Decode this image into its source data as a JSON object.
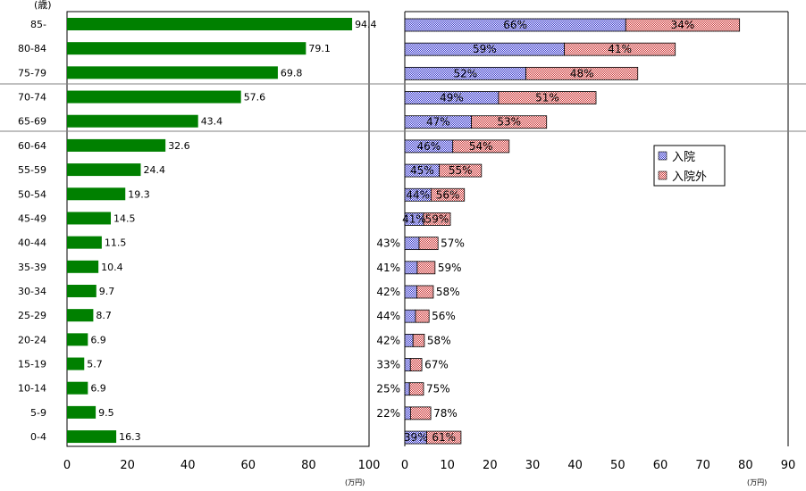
{
  "chart_data": [
    {
      "type": "bar",
      "orientation": "horizontal",
      "y_unit_label": "(歳)",
      "x_unit_label": "(万円)",
      "xlim": [
        0,
        100
      ],
      "xticks": [
        0,
        20,
        40,
        60,
        80,
        100
      ],
      "color": "#008000",
      "categories": [
        "85-",
        "80-84",
        "75-79",
        "70-74",
        "65-69",
        "60-64",
        "55-59",
        "50-54",
        "45-49",
        "40-44",
        "35-39",
        "30-34",
        "25-29",
        "20-24",
        "15-19",
        "10-14",
        "5-9",
        "0-4"
      ],
      "values": [
        94.4,
        79.1,
        69.8,
        57.6,
        43.4,
        32.6,
        24.4,
        19.3,
        14.5,
        11.5,
        10.4,
        9.7,
        8.7,
        6.9,
        5.7,
        6.9,
        9.5,
        16.3
      ],
      "value_labels": [
        "94.4",
        "79.1",
        "69.8",
        "57.6",
        "43.4",
        "32.6",
        "24.4",
        "19.3",
        "14.5",
        "11.5",
        "10.4",
        "9.7",
        "8.7",
        "6.9",
        "5.7",
        "6.9",
        "9.5",
        "16.3"
      ]
    },
    {
      "type": "bar",
      "orientation": "horizontal",
      "stacked": true,
      "x_unit_label": "(万円)",
      "xlim": [
        0,
        90
      ],
      "xticks": [
        0,
        10,
        20,
        30,
        40,
        50,
        60,
        70,
        80,
        90
      ],
      "legend": "right-middle",
      "categories": [
        "85-",
        "80-84",
        "75-79",
        "70-74",
        "65-69",
        "60-64",
        "55-59",
        "50-54",
        "45-49",
        "40-44",
        "35-39",
        "30-34",
        "25-29",
        "20-24",
        "15-19",
        "10-14",
        "5-9",
        "0-4"
      ],
      "totals": [
        78.6,
        63.5,
        54.7,
        44.9,
        33.3,
        24.5,
        18.0,
        14.0,
        10.7,
        7.8,
        7.1,
        6.7,
        5.7,
        4.6,
        4.0,
        4.4,
        6.1,
        13.2
      ],
      "series": [
        {
          "name": "入院",
          "color": "#3333cc",
          "percent": [
            66,
            59,
            52,
            49,
            47,
            46,
            45,
            44,
            41,
            43,
            41,
            42,
            44,
            42,
            33,
            25,
            22,
            39
          ],
          "labels": [
            "66%",
            "59%",
            "52%",
            "49%",
            "47%",
            "46%",
            "45%",
            "44%",
            "41%",
            "43%",
            "41%",
            "42%",
            "44%",
            "42%",
            "33%",
            "25%",
            "22%",
            "39%"
          ]
        },
        {
          "name": "入院外",
          "color": "#cc3333",
          "percent": [
            34,
            41,
            48,
            51,
            53,
            54,
            55,
            56,
            59,
            57,
            59,
            58,
            56,
            58,
            67,
            75,
            78,
            61
          ],
          "labels": [
            "34%",
            "41%",
            "48%",
            "51%",
            "53%",
            "54%",
            "55%",
            "56%",
            "59%",
            "57%",
            "59%",
            "58%",
            "56%",
            "58%",
            "67%",
            "75%",
            "78%",
            "61%"
          ]
        }
      ],
      "labels_outside": [
        false,
        false,
        false,
        false,
        false,
        false,
        false,
        false,
        false,
        true,
        true,
        true,
        true,
        true,
        true,
        true,
        true,
        false
      ]
    }
  ]
}
